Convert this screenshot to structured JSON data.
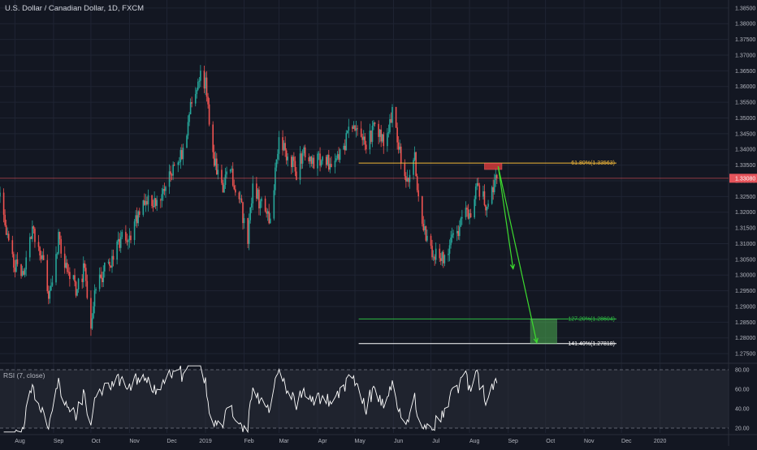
{
  "header": {
    "symbol_title": "U.S. Dollar / Canadian Dollar, 1D, FXCM"
  },
  "rsi_panel": {
    "title": "RSI (7, close)",
    "levels": [
      "80.00",
      "60.00",
      "40.00",
      "20.00"
    ]
  },
  "colors": {
    "background": "#131722",
    "grid": "#1f2433",
    "up_candle": "#26a69a",
    "down_candle": "#ef5350",
    "fib_618": "#f2b83a",
    "fib_1272": "#2ebd43",
    "fib_1414": "#ffffff",
    "current_price_line": "#e5545b",
    "target_zone": "#4caf50",
    "entry_zone": "#d23a3a",
    "rsi_line": "#ffffff"
  },
  "chart_data": {
    "type": "candlestick",
    "title": "U.S. Dollar / Canadian Dollar, 1D, FXCM",
    "x_ticks": [
      "Aug",
      "Sep",
      "Oct",
      "Nov",
      "Dec",
      "2019",
      "Feb",
      "Mar",
      "Apr",
      "May",
      "Jun",
      "Jul",
      "Aug",
      "Sep",
      "Oct",
      "Nov",
      "Dec",
      "2020"
    ],
    "y_ticks": [
      "1.38500",
      "1.38000",
      "1.37500",
      "1.37000",
      "1.36500",
      "1.36000",
      "1.35500",
      "1.35000",
      "1.34500",
      "1.34000",
      "1.33500",
      "1.33000",
      "1.32500",
      "1.32000",
      "1.31500",
      "1.31000",
      "1.30500",
      "1.30000",
      "1.29500",
      "1.29000",
      "1.28500",
      "1.28000",
      "1.27500"
    ],
    "ylim": [
      1.274,
      1.3865
    ],
    "current_price": {
      "label": "1.33080",
      "value": 1.3308
    },
    "fibonacci_levels": [
      {
        "label": "61.80%(1.33563)",
        "value": 1.33563,
        "color": "#f2b83a"
      },
      {
        "label": "127.20%(1.28604)",
        "value": 1.28604,
        "color": "#2ebd43"
      },
      {
        "label": "141.40%(1.27818)",
        "value": 1.27818,
        "color": "#ffffff"
      }
    ],
    "price_path": [
      [
        "2018-07-20",
        1.325
      ],
      [
        "2018-07-24",
        1.316
      ],
      [
        "2018-07-31",
        1.303
      ],
      [
        "2018-08-08",
        1.3
      ],
      [
        "2018-08-15",
        1.314
      ],
      [
        "2018-08-22",
        1.306
      ],
      [
        "2018-08-29",
        1.293
      ],
      [
        "2018-09-05",
        1.312
      ],
      [
        "2018-09-12",
        1.301
      ],
      [
        "2018-09-19",
        1.296
      ],
      [
        "2018-09-26",
        1.302
      ],
      [
        "2018-10-01",
        1.282
      ],
      [
        "2018-10-04",
        1.293
      ],
      [
        "2018-10-11",
        1.301
      ],
      [
        "2018-10-18",
        1.305
      ],
      [
        "2018-10-25",
        1.312
      ],
      [
        "2018-11-01",
        1.31
      ],
      [
        "2018-11-08",
        1.32
      ],
      [
        "2018-11-15",
        1.324
      ],
      [
        "2018-11-22",
        1.322
      ],
      [
        "2018-11-29",
        1.329
      ],
      [
        "2018-12-06",
        1.335
      ],
      [
        "2018-12-13",
        1.338
      ],
      [
        "2018-12-20",
        1.353
      ],
      [
        "2018-12-28",
        1.365
      ],
      [
        "2019-01-02",
        1.359
      ],
      [
        "2019-01-07",
        1.337
      ],
      [
        "2019-01-14",
        1.328
      ],
      [
        "2019-01-21",
        1.333
      ],
      [
        "2019-01-28",
        1.325
      ],
      [
        "2019-02-04",
        1.311
      ],
      [
        "2019-02-08",
        1.328
      ],
      [
        "2019-02-15",
        1.322
      ],
      [
        "2019-02-22",
        1.318
      ],
      [
        "2019-03-01",
        1.342
      ],
      [
        "2019-03-08",
        1.338
      ],
      [
        "2019-03-15",
        1.333
      ],
      [
        "2019-03-22",
        1.34
      ],
      [
        "2019-03-29",
        1.335
      ],
      [
        "2019-04-05",
        1.338
      ],
      [
        "2019-04-12",
        1.334
      ],
      [
        "2019-04-19",
        1.338
      ],
      [
        "2019-04-26",
        1.345
      ],
      [
        "2019-05-03",
        1.346
      ],
      [
        "2019-05-10",
        1.342
      ],
      [
        "2019-05-17",
        1.347
      ],
      [
        "2019-05-24",
        1.343
      ],
      [
        "2019-05-31",
        1.351
      ],
      [
        "2019-06-05",
        1.34
      ],
      [
        "2019-06-12",
        1.329
      ],
      [
        "2019-06-18",
        1.339
      ],
      [
        "2019-06-21",
        1.323
      ],
      [
        "2019-06-28",
        1.31
      ],
      [
        "2019-07-05",
        1.307
      ],
      [
        "2019-07-12",
        1.306
      ],
      [
        "2019-07-19",
        1.311
      ],
      [
        "2019-07-26",
        1.318
      ],
      [
        "2019-08-02",
        1.321
      ],
      [
        "2019-08-07",
        1.328
      ],
      [
        "2019-08-14",
        1.323
      ],
      [
        "2019-08-21",
        1.33
      ],
      [
        "2019-08-23",
        1.3308
      ]
    ],
    "drawings": {
      "entry_zone": {
        "x": [
          "2019-08-13",
          "2019-08-27"
        ],
        "y": [
          1.3336,
          1.3356
        ]
      },
      "target_zone": {
        "x": [
          "2019-09-19",
          "2019-10-10"
        ],
        "y": [
          1.2782,
          1.286
        ]
      },
      "projection_arrows": [
        {
          "from": [
            "2019-08-24",
            1.3346
          ],
          "to": [
            "2019-09-05",
            1.302
          ]
        },
        {
          "from": [
            "2019-08-24",
            1.3346
          ],
          "to": [
            "2019-09-24",
            1.2785
          ]
        }
      ]
    },
    "rsi": {
      "title": "RSI (7, close)",
      "period": 7,
      "ylim": [
        15,
        85
      ],
      "levels": [
        80,
        20
      ]
    }
  }
}
